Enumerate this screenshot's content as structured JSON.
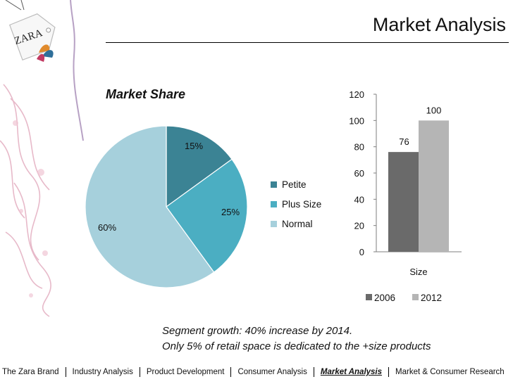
{
  "slide": {
    "title": "Market Analysis",
    "caption_lines": [
      "Segment growth: 40% increase by 2014.",
      "Only 5% of retail space is dedicated to the +size products"
    ]
  },
  "logo": {
    "text": "ZARA"
  },
  "nav": {
    "items": [
      "The Zara Brand",
      "Industry Analysis",
      "Product Development",
      "Consumer Analysis",
      "Market Analysis",
      "Market & Consumer Research"
    ],
    "active_index": 4
  },
  "colors": {
    "petite": "#3b8394",
    "plus_size": "#4baec2",
    "normal": "#a6d0dc",
    "series_2006": "#6a6a6a",
    "series_2012": "#b5b5b5"
  },
  "chart_data": [
    {
      "type": "pie",
      "title": "Market Share",
      "categories": [
        "Petite",
        "Plus Size",
        "Normal"
      ],
      "values": [
        15,
        25,
        60
      ],
      "labels": [
        "15%",
        "25%",
        "60%"
      ],
      "legend": "right"
    },
    {
      "type": "bar",
      "categories": [
        "Size"
      ],
      "series": [
        {
          "name": "2006",
          "values": [
            76
          ]
        },
        {
          "name": "2012",
          "values": [
            100
          ]
        }
      ],
      "ylim": [
        0,
        120
      ],
      "yticks": [
        0,
        20,
        40,
        60,
        80,
        100,
        120
      ],
      "grid": false,
      "legend": "bottom"
    }
  ]
}
